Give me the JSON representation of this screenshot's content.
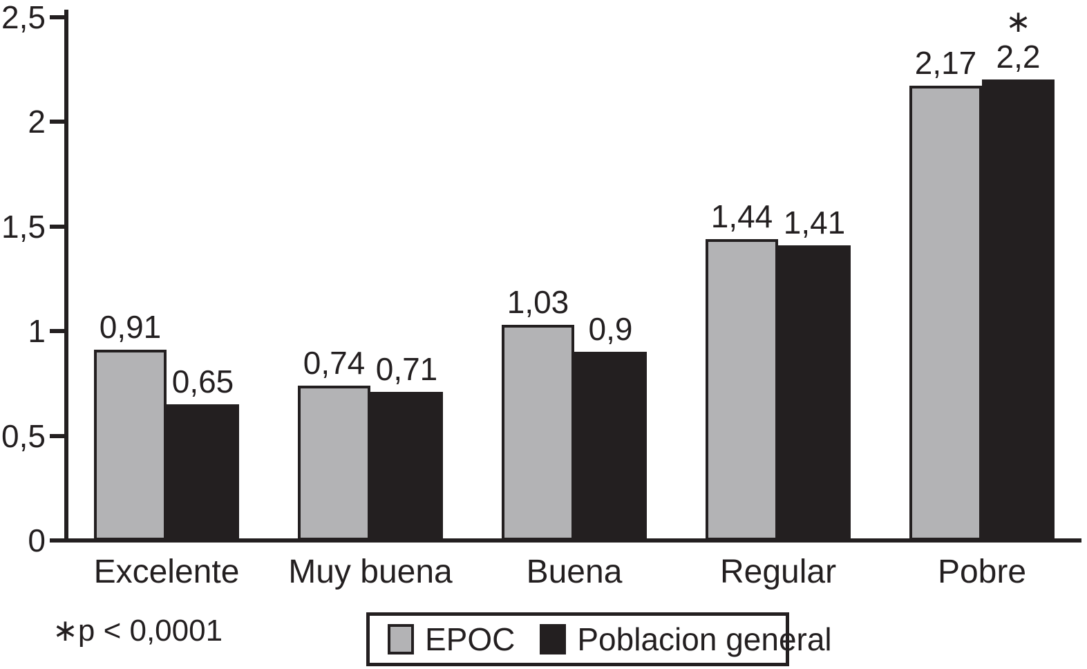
{
  "chart_data": {
    "type": "bar",
    "categories": [
      "Excelente",
      "Muy buena",
      "Buena",
      "Regular",
      "Pobre"
    ],
    "series": [
      {
        "name": "EPOC",
        "color": "#b3b3b5",
        "values": [
          0.91,
          0.74,
          1.03,
          1.44,
          2.17
        ],
        "value_labels": [
          "0,91",
          "0,74",
          "1,03",
          "1,44",
          "2,17"
        ]
      },
      {
        "name": "Poblacion general",
        "color": "#231f20",
        "values": [
          0.65,
          0.71,
          0.9,
          1.41,
          2.2
        ],
        "value_labels": [
          "0,65",
          "0,71",
          "0,9",
          "1,41",
          "2,2"
        ]
      }
    ],
    "y_ticks": [
      "0",
      "0,5",
      "1",
      "1,5",
      "2",
      "2,5"
    ],
    "y_tick_values": [
      0,
      0.5,
      1,
      1.5,
      2,
      2.5
    ],
    "ylim": [
      0,
      2.5
    ],
    "title": "",
    "xlabel": "",
    "ylabel": "",
    "grid": false,
    "legend_position": "bottom",
    "annotation": {
      "marker": "∗",
      "series_index": 1,
      "category_index": 4
    },
    "footnote": "∗p < 0,0001",
    "legend": [
      {
        "label": "EPOC",
        "color": "#b3b3b5"
      },
      {
        "label": "Poblacion general",
        "color": "#231f20"
      }
    ],
    "axis_color": "#231f20"
  }
}
